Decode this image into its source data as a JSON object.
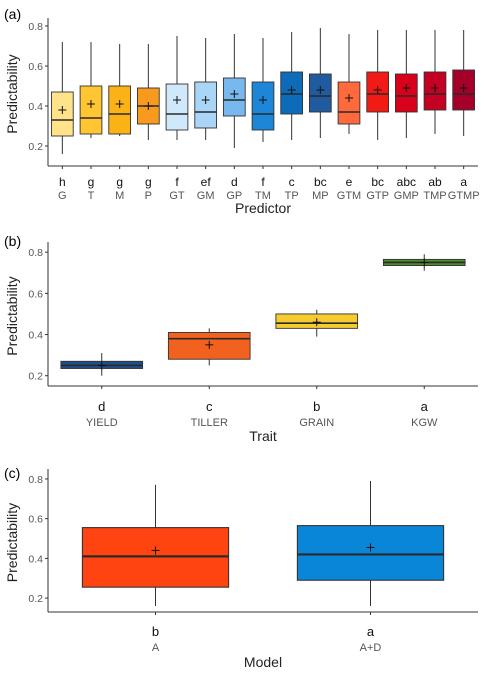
{
  "chart_data": [
    {
      "type": "box",
      "panel_label": "(a)",
      "xlabel": "Predictor",
      "ylabel": "Predictability",
      "ylim": [
        0.1,
        0.82
      ],
      "yticks": [
        "0.2",
        "0.4",
        "0.6",
        "0.8"
      ],
      "grid": false,
      "mean_marker": "+",
      "categories": [
        "G",
        "T",
        "M",
        "P",
        "GT",
        "GM",
        "GP",
        "TM",
        "TP",
        "MP",
        "GTM",
        "GTP",
        "GMP",
        "TMP",
        "GTMP"
      ],
      "boxes": [
        {
          "category": "G",
          "min": 0.16,
          "q1": 0.25,
          "median": 0.33,
          "q3": 0.47,
          "max": 0.72,
          "mean": 0.38,
          "letter": "h",
          "color": "#FFE28A"
        },
        {
          "category": "T",
          "min": 0.24,
          "q1": 0.26,
          "median": 0.34,
          "q3": 0.5,
          "max": 0.72,
          "mean": 0.41,
          "letter": "g",
          "color": "#FFC533"
        },
        {
          "category": "M",
          "min": 0.25,
          "q1": 0.26,
          "median": 0.36,
          "q3": 0.5,
          "max": 0.71,
          "mean": 0.41,
          "letter": "g",
          "color": "#FBB216"
        },
        {
          "category": "P",
          "min": 0.23,
          "q1": 0.31,
          "median": 0.4,
          "q3": 0.49,
          "max": 0.71,
          "mean": 0.4,
          "letter": "g",
          "color": "#F79A1E"
        },
        {
          "category": "GT",
          "min": 0.23,
          "q1": 0.28,
          "median": 0.36,
          "q3": 0.51,
          "max": 0.75,
          "mean": 0.43,
          "letter": "f",
          "color": "#CFE8FA"
        },
        {
          "category": "GM",
          "min": 0.23,
          "q1": 0.29,
          "median": 0.37,
          "q3": 0.52,
          "max": 0.74,
          "mean": 0.43,
          "letter": "ef",
          "color": "#A9D5F6"
        },
        {
          "category": "GP",
          "min": 0.19,
          "q1": 0.35,
          "median": 0.43,
          "q3": 0.54,
          "max": 0.76,
          "mean": 0.46,
          "letter": "d",
          "color": "#77B9EE"
        },
        {
          "category": "TM",
          "min": 0.22,
          "q1": 0.28,
          "median": 0.36,
          "q3": 0.52,
          "max": 0.74,
          "mean": 0.43,
          "letter": "f",
          "color": "#1E86D6"
        },
        {
          "category": "TP",
          "min": 0.23,
          "q1": 0.36,
          "median": 0.46,
          "q3": 0.57,
          "max": 0.77,
          "mean": 0.48,
          "letter": "c",
          "color": "#0E6BB9"
        },
        {
          "category": "MP",
          "min": 0.24,
          "q1": 0.37,
          "median": 0.45,
          "q3": 0.56,
          "max": 0.79,
          "mean": 0.48,
          "letter": "bc",
          "color": "#1F5B9E"
        },
        {
          "category": "GTM",
          "min": 0.26,
          "q1": 0.31,
          "median": 0.37,
          "q3": 0.52,
          "max": 0.76,
          "mean": 0.44,
          "letter": "e",
          "color": "#FF6A3D"
        },
        {
          "category": "GTP",
          "min": 0.23,
          "q1": 0.37,
          "median": 0.46,
          "q3": 0.57,
          "max": 0.78,
          "mean": 0.48,
          "letter": "bc",
          "color": "#F21A15"
        },
        {
          "category": "GMP",
          "min": 0.24,
          "q1": 0.37,
          "median": 0.45,
          "q3": 0.56,
          "max": 0.78,
          "mean": 0.49,
          "letter": "abc",
          "color": "#D9001B"
        },
        {
          "category": "TMP",
          "min": 0.26,
          "q1": 0.38,
          "median": 0.46,
          "q3": 0.57,
          "max": 0.78,
          "mean": 0.49,
          "letter": "ab",
          "color": "#C40023"
        },
        {
          "category": "GTMP",
          "min": 0.25,
          "q1": 0.38,
          "median": 0.46,
          "q3": 0.58,
          "max": 0.78,
          "mean": 0.49,
          "letter": "a",
          "color": "#A4002A"
        }
      ]
    },
    {
      "type": "box",
      "panel_label": "(b)",
      "xlabel": "Trait",
      "ylabel": "Predictability",
      "ylim": [
        0.15,
        0.83
      ],
      "yticks": [
        "0.2",
        "0.4",
        "0.6",
        "0.8"
      ],
      "grid": false,
      "mean_marker": "+",
      "categories": [
        "YIELD",
        "TILLER",
        "GRAIN",
        "KGW"
      ],
      "boxes": [
        {
          "category": "YIELD",
          "min": 0.2,
          "q1": 0.235,
          "median": 0.25,
          "q3": 0.27,
          "max": 0.31,
          "mean": 0.25,
          "letter": "d",
          "color": "#1F4E8C"
        },
        {
          "category": "TILLER",
          "min": 0.25,
          "q1": 0.28,
          "median": 0.38,
          "q3": 0.41,
          "max": 0.43,
          "mean": 0.35,
          "letter": "c",
          "color": "#F2611E"
        },
        {
          "category": "GRAIN",
          "min": 0.39,
          "q1": 0.43,
          "median": 0.455,
          "q3": 0.5,
          "max": 0.52,
          "mean": 0.46,
          "letter": "b",
          "color": "#F6CB2D"
        },
        {
          "category": "KGW",
          "min": 0.71,
          "q1": 0.735,
          "median": 0.75,
          "q3": 0.765,
          "max": 0.79,
          "mean": 0.75,
          "letter": "a",
          "color": "#4E8A2E"
        }
      ]
    },
    {
      "type": "box",
      "panel_label": "(c)",
      "xlabel": "Model",
      "ylabel": "Predictability",
      "ylim": [
        0.13,
        0.83
      ],
      "yticks": [
        "0.2",
        "0.4",
        "0.6",
        "0.8"
      ],
      "grid": false,
      "mean_marker": "+",
      "categories": [
        "A",
        "A+D"
      ],
      "boxes": [
        {
          "category": "A",
          "min": 0.16,
          "q1": 0.255,
          "median": 0.41,
          "q3": 0.555,
          "max": 0.77,
          "mean": 0.44,
          "letter": "b",
          "color": "#FF4411"
        },
        {
          "category": "A+D",
          "min": 0.16,
          "q1": 0.29,
          "median": 0.42,
          "q3": 0.565,
          "max": 0.79,
          "mean": 0.455,
          "letter": "a",
          "color": "#0A86D8"
        }
      ]
    }
  ]
}
